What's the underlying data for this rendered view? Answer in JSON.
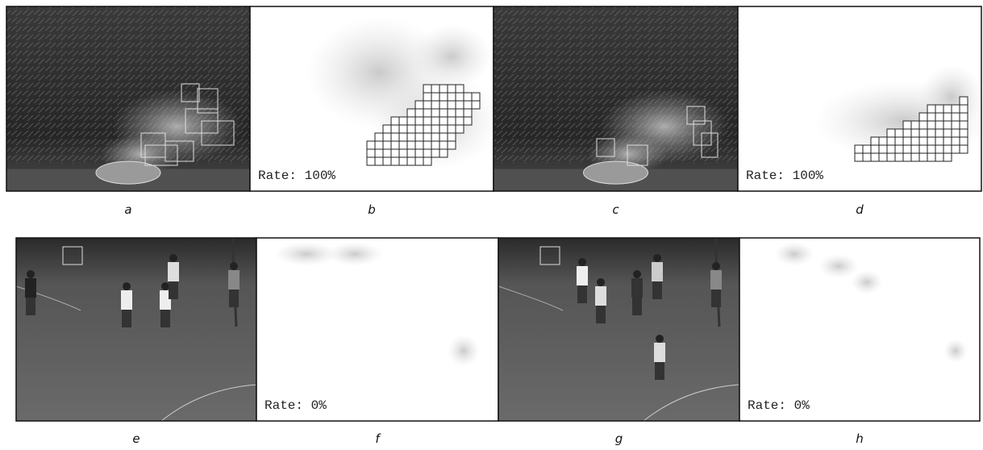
{
  "panels": [
    {
      "label": "a"
    },
    {
      "label": "b",
      "text": "Rate: 100%"
    },
    {
      "label": "c"
    },
    {
      "label": "d",
      "text": "Rate: 100%"
    },
    {
      "label": "e"
    },
    {
      "label": "f",
      "text": "Rate: 0%"
    },
    {
      "label": "g"
    },
    {
      "label": "h",
      "text": "Rate: 0%"
    }
  ]
}
